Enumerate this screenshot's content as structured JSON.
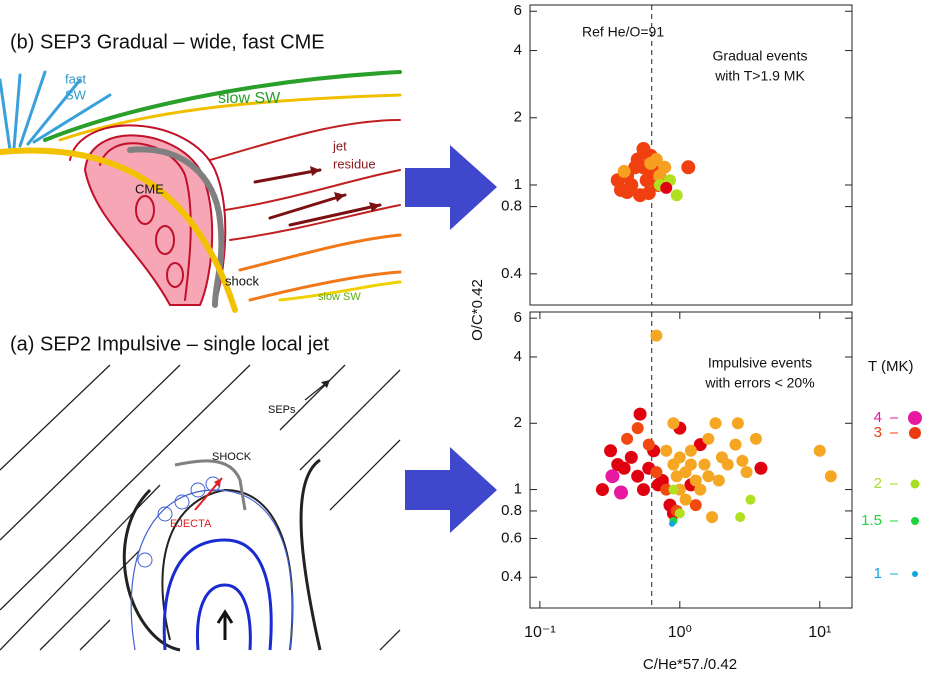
{
  "gradual_diagram": {
    "title": "(b) SEP3 Gradual – wide, fast CME",
    "fast_sw": [
      "fast",
      "SW"
    ],
    "slow_sw": "slow SW",
    "jet_residue": [
      "jet",
      "residue"
    ],
    "cme": "CME",
    "shock": "shock",
    "slow_sw_2": "slow SW"
  },
  "impulsive_diagram": {
    "title": "(a) SEP2 Impulsive – single local jet",
    "seps": "SEPs",
    "shock": "SHOCK",
    "ejecta": "EJECTA"
  },
  "chart_data": [
    {
      "type": "scatter",
      "log_x": true,
      "log_y": true,
      "xlim": [
        0.085,
        17
      ],
      "ylim": [
        0.29,
        6.4
      ],
      "yticks": [
        0.4,
        0.8,
        1,
        2,
        4,
        6
      ],
      "y_label": "O/C*0.42",
      "ref_line": {
        "x": 0.63,
        "label": "Ref He/O=91"
      },
      "annotation": [
        "Gradual events",
        "with T>1.9 MK"
      ],
      "series": [
        {
          "color": "#f04010",
          "x": [
            0.36,
            0.38,
            0.42,
            0.45,
            0.5,
            0.52,
            0.55,
            0.58,
            0.6,
            0.65,
            0.48,
            0.55,
            0.7,
            1.15,
            0.42,
            0.62
          ],
          "values": [
            1.05,
            0.95,
            1.1,
            1.0,
            1.3,
            0.9,
            1.2,
            1.05,
            0.92,
            1.15,
            1.2,
            1.45,
            1.0,
            1.2,
            0.93,
            1.35
          ]
        },
        {
          "color": "#f5a020",
          "x": [
            0.72,
            0.68,
            0.78,
            0.62,
            0.4
          ],
          "values": [
            1.1,
            1.3,
            1.2,
            1.25,
            1.15
          ]
        },
        {
          "color": "#b0e020",
          "x": [
            0.72,
            0.95,
            0.85
          ],
          "values": [
            1.0,
            0.9,
            1.05
          ]
        },
        {
          "color": "#e00010",
          "x": [
            0.8
          ],
          "values": [
            0.97
          ]
        }
      ]
    },
    {
      "type": "scatter",
      "log_x": true,
      "log_y": true,
      "xlim": [
        0.085,
        17
      ],
      "ylim": [
        0.29,
        6.4
      ],
      "xticks": [
        {
          "value": 0.1,
          "label": "10⁻¹"
        },
        {
          "value": 1,
          "label": "10⁰"
        },
        {
          "value": 10,
          "label": "10¹"
        }
      ],
      "yticks": [
        0.4,
        0.6,
        0.8,
        1,
        2,
        4,
        6
      ],
      "x_label": "C/He*57./0.42",
      "ref_line": {
        "x": 0.63
      },
      "annotation": [
        "Impulsive events",
        "with errors < 20%"
      ],
      "legend_title": "T (MK)",
      "legend": [
        {
          "label": "4",
          "color": "#e619a0"
        },
        {
          "label": "3",
          "color": "#ee3a10"
        },
        {
          "label": "2",
          "color": "#a6e021"
        },
        {
          "label": "1.5",
          "color": "#1fd43c"
        },
        {
          "label": "1",
          "color": "#12a4e0"
        }
      ],
      "series": [
        {
          "color": "#e619a0",
          "x": [
            0.33,
            0.38
          ],
          "values": [
            1.15,
            0.97
          ]
        },
        {
          "color": "#e00010",
          "x": [
            0.28,
            0.32,
            0.36,
            0.4,
            0.45,
            0.5,
            0.52,
            0.55,
            0.6,
            0.65,
            0.7,
            0.75,
            0.85,
            0.9,
            1.0,
            1.4,
            1.2,
            3.8,
            0.75
          ],
          "values": [
            1.0,
            1.5,
            1.3,
            1.25,
            1.4,
            1.15,
            2.2,
            1.0,
            1.25,
            1.5,
            1.05,
            1.05,
            0.85,
            0.78,
            1.9,
            1.6,
            1.05,
            1.25,
            1.1
          ]
        },
        {
          "color": "#f04a10",
          "x": [
            0.42,
            0.5,
            0.6,
            0.68,
            0.8,
            0.95,
            1.3
          ],
          "values": [
            1.7,
            1.9,
            1.6,
            1.2,
            1.0,
            0.8,
            0.85
          ]
        },
        {
          "color": "#f5a623",
          "x": [
            0.68,
            0.9,
            0.8,
            0.9,
            1.0,
            1.1,
            1.2,
            1.3,
            1.5,
            1.6,
            1.8,
            1.7,
            1.9,
            2.0,
            2.2,
            2.5,
            2.8,
            3.0,
            3.5,
            1.0,
            1.1,
            1.4,
            2.6,
            1.2,
            10,
            12,
            0.95,
            1.6
          ],
          "values": [
            5.0,
            2.0,
            1.5,
            1.3,
            1.4,
            1.2,
            1.5,
            1.1,
            1.3,
            1.7,
            2.0,
            0.75,
            1.1,
            1.4,
            1.3,
            1.6,
            1.35,
            1.2,
            1.7,
            1.0,
            0.9,
            1.0,
            2.0,
            1.3,
            1.5,
            1.15,
            1.15,
            1.15
          ]
        },
        {
          "color": "#b0e020",
          "x": [
            0.9,
            1.0,
            2.7,
            3.2
          ],
          "values": [
            1.0,
            0.78,
            0.75,
            0.9
          ]
        },
        {
          "color": "#1fd43c",
          "x": [
            0.9
          ],
          "values": [
            0.72
          ]
        },
        {
          "color": "#12a4e0",
          "x": [
            0.88
          ],
          "values": [
            0.7
          ]
        }
      ]
    }
  ]
}
